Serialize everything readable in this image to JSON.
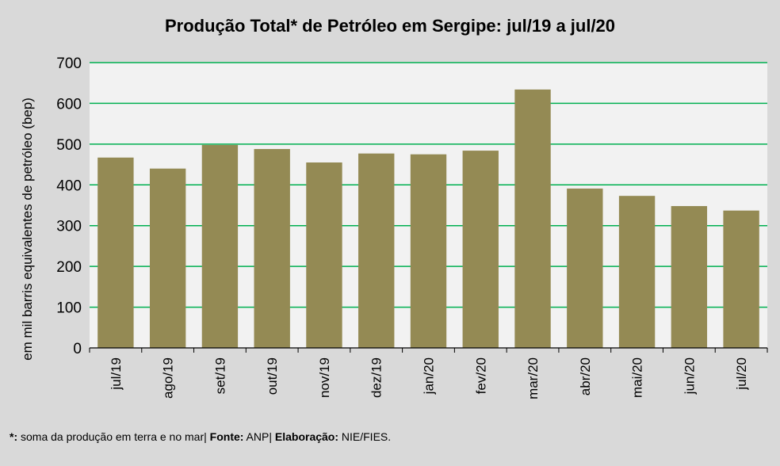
{
  "chart_data": {
    "type": "bar",
    "title": "Produção Total* de Petróleo em Sergipe:  jul/19 a jul/20",
    "xlabel": "",
    "ylabel": "em mil barris equivalentes de petróleo (bep)",
    "ylim": [
      0,
      700
    ],
    "yticks": [
      0,
      100,
      200,
      300,
      400,
      500,
      600,
      700
    ],
    "grid": true,
    "categories": [
      "jul/19",
      "ago/19",
      "set/19",
      "out/19",
      "nov/19",
      "dez/19",
      "jan/20",
      "fev/20",
      "mar/20",
      "abr/20",
      "mai/20",
      "jun/20",
      "jul/20"
    ],
    "values": [
      467,
      440,
      498,
      488,
      455,
      477,
      475,
      484,
      634,
      391,
      373,
      348,
      337
    ],
    "colors": {
      "bar": "#948a54",
      "grid": "#00b050",
      "plot_bg": "#f2f2f2",
      "page_bg": "#d9d9d9"
    }
  },
  "footer": {
    "star_label": "*:",
    "note": " soma da produção em terra e no mar| ",
    "source_label": "Fonte:",
    "source": "  ANP| ",
    "elab_label": "Elaboração:",
    "elab": " NIE/FIES."
  }
}
